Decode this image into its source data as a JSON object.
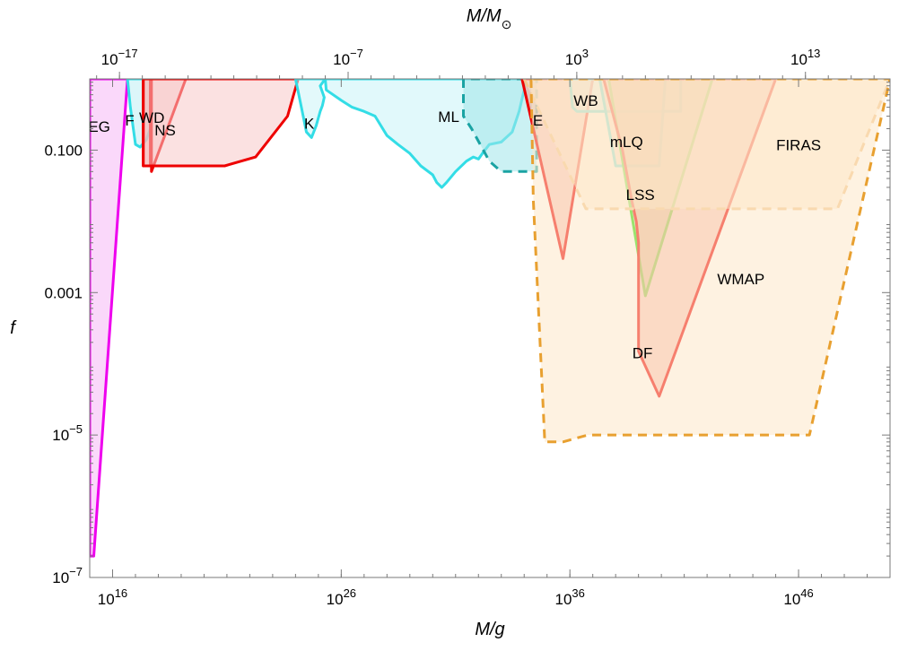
{
  "chart_data": {
    "type": "area",
    "title": "",
    "x_scale": "log",
    "y_scale": "log",
    "xlabel": "M/g",
    "ylabel": "f",
    "x2label_main": "M/M",
    "x2label_sub": "⊙",
    "xlim": [
      1000000000000000.0,
      1e+50
    ],
    "ylim": [
      1e-07,
      1
    ],
    "grid": false,
    "legend": "none",
    "xticks": [
      {
        "value": 1e+16,
        "base": "10",
        "exp": "16"
      },
      {
        "value": 1e+26,
        "base": "10",
        "exp": "26"
      },
      {
        "value": 1e+36,
        "base": "10",
        "exp": "36"
      },
      {
        "value": 1e+46,
        "base": "10",
        "exp": "46"
      }
    ],
    "x2ticks": [
      {
        "value": 2e+16,
        "base": "10",
        "exp": "−17"
      },
      {
        "value": 2e+26,
        "base": "10",
        "exp": "−7"
      },
      {
        "value": 2e+36,
        "base": "10",
        "exp": "3"
      },
      {
        "value": 2e+46,
        "base": "10",
        "exp": "13"
      }
    ],
    "yticks": [
      {
        "value": 1e-07,
        "text": "",
        "base": "10",
        "exp": "−7"
      },
      {
        "value": 1e-05,
        "text": "",
        "base": "10",
        "exp": "−5"
      },
      {
        "value": 0.001,
        "text": "0.001"
      },
      {
        "value": 0.1,
        "text": "0.100"
      }
    ],
    "regions": [
      {
        "label": "EG",
        "label_at": [
          2600000000000000.0,
          0.18
        ],
        "fill": "#f6b8f6",
        "stroke": "#ee00ee",
        "dash": false,
        "points": [
          [
            1000000000000000.0,
            2e-07
          ],
          [
            1500000000000000.0,
            2e-07
          ],
          [
            4.5e+16,
            1
          ],
          [
            1000000000000000.0,
            1
          ]
        ]
      },
      {
        "label": "F",
        "label_at": [
          5.6e+16,
          0.22
        ],
        "fill": "#bfeef4",
        "stroke": "#33dde6",
        "dash": false,
        "points": [
          [
            4.5e+16,
            1
          ],
          [
            6e+16,
            0.4
          ],
          [
            1e+17,
            0.12
          ],
          [
            1.6e+17,
            0.11
          ],
          [
            3e+17,
            0.14
          ],
          [
            4.5e+17,
            0.2
          ],
          [
            4.5e+17,
            1
          ]
        ]
      },
      {
        "label": "WD",
        "label_at": [
          5.2e+17,
          0.24
        ],
        "fill": "#f4a0a0",
        "stroke": "#ee0000",
        "dash": false,
        "points": [
          [
            2.2e+17,
            1
          ],
          [
            2.2e+17,
            0.06
          ],
          [
            4.5e+17,
            0.06
          ],
          [
            4.5e+17,
            1
          ]
        ]
      },
      {
        "label": "NS",
        "label_at": [
          2e+18,
          0.16
        ],
        "fill": "#f8c8c8",
        "stroke": "#ee0000",
        "dash": false,
        "points": [
          [
            5e+17,
            1
          ],
          [
            5e+17,
            0.05
          ],
          [
            1.6e+19,
            1
          ]
        ]
      },
      {
        "label": "",
        "label_at": [
          1e+18,
          1
        ],
        "fill": "#f8c8c8",
        "stroke": "#ee0000",
        "dash": false,
        "points": [
          [
            2.2e+17,
            0.06
          ],
          [
            6e+17,
            0.06
          ],
          [
            5e+18,
            0.06
          ],
          [
            8e+20,
            0.06
          ],
          [
            1.8e+22,
            0.08
          ],
          [
            4.5e+23,
            0.3
          ],
          [
            1.3e+24,
            1
          ],
          [
            2.2e+17,
            1
          ]
        ]
      },
      {
        "label": "K",
        "label_at": [
          4e+24,
          0.2
        ],
        "fill": "#ccf4f8",
        "stroke": "#33dde6",
        "dash": false,
        "points": [
          [
            1e+24,
            1
          ],
          [
            1.8e+24,
            0.4
          ],
          [
            3e+24,
            0.18
          ],
          [
            5e+24,
            0.15
          ],
          [
            8e+24,
            0.22
          ],
          [
            1.2e+25,
            0.35
          ],
          [
            1.5e+25,
            0.42
          ],
          [
            1.8e+25,
            0.55
          ],
          [
            1.2e+25,
            0.8
          ],
          [
            2e+25,
            1
          ]
        ]
      },
      {
        "label": "",
        "label_at": [
          1e+28,
          1
        ],
        "fill": "#c8f4f8",
        "stroke": "#33dde6",
        "dash": false,
        "points": [
          [
            2e+25,
            1
          ],
          [
            2.2e+25,
            0.7
          ],
          [
            1e+26,
            0.5
          ],
          [
            3e+26,
            0.4
          ],
          [
            1e+27,
            0.35
          ],
          [
            3e+27,
            0.3
          ],
          [
            1e+28,
            0.16
          ],
          [
            3e+28,
            0.12
          ],
          [
            1e+29,
            0.09
          ],
          [
            3e+29,
            0.06
          ],
          [
            1e+30,
            0.045
          ],
          [
            1.5e+30,
            0.035
          ],
          [
            2.5e+30,
            0.03
          ],
          [
            4e+30,
            0.035
          ],
          [
            1e+31,
            0.05
          ],
          [
            3e+31,
            0.07
          ],
          [
            6e+31,
            0.08
          ],
          [
            1e+32,
            0.075
          ],
          [
            1.5e+32,
            0.09
          ],
          [
            3e+32,
            0.12
          ],
          [
            1e+33,
            0.13
          ],
          [
            3e+33,
            0.18
          ],
          [
            6e+33,
            0.35
          ],
          [
            1e+34,
            0.7
          ],
          [
            1e+34,
            1
          ]
        ]
      },
      {
        "label": "ML",
        "label_at": [
          5e+30,
          0.25
        ],
        "fill": "#a0e6ea",
        "stroke": "#1aa3a3",
        "dash": true,
        "points": [
          [
            2.2e+31,
            1
          ],
          [
            2.2e+31,
            0.3
          ],
          [
            5e+31,
            0.2
          ],
          [
            3e+32,
            0.07
          ],
          [
            1e+33,
            0.05
          ],
          [
            1e+34,
            0.05
          ],
          [
            3.5e+34,
            0.05
          ],
          [
            3.5e+34,
            1
          ]
        ]
      },
      {
        "label": "E",
        "label_at": [
          4e+34,
          0.22
        ],
        "fill": "#f4a08c",
        "stroke": "#ee0000",
        "dash": false,
        "points": [
          [
            8e+33,
            1
          ],
          [
            5e+35,
            0.003
          ],
          [
            1e+37,
            1
          ]
        ]
      },
      {
        "label": "WB",
        "label_at": [
          5e+36,
          0.42
        ],
        "fill": "#c8f4f8",
        "stroke": "#33dde6",
        "dash": false,
        "points": [
          [
            1e+36,
            1
          ],
          [
            1.3e+36,
            0.4
          ],
          [
            2e+36,
            0.35
          ],
          [
            7e+40,
            0.35
          ],
          [
            7e+40,
            1
          ]
        ]
      },
      {
        "label": "mLQ",
        "label_at": [
          3e+38,
          0.11
        ],
        "fill": "#f8c8b8",
        "stroke": "#33dde6",
        "dash": false,
        "points": [
          [
            2e+37,
            1
          ],
          [
            1e+38,
            0.06
          ],
          [
            8e+39,
            0.06
          ],
          [
            1.5e+40,
            1
          ]
        ]
      },
      {
        "label": "LSS",
        "label_at": [
          1.2e+39,
          0.02
        ],
        "fill": "#c0c880",
        "stroke": "#22dd00",
        "dash": false,
        "points": [
          [
            5e+37,
            1
          ],
          [
            2e+39,
            0.0009
          ],
          [
            1.7e+42,
            1
          ]
        ]
      },
      {
        "label": "DF",
        "label_at": [
          1.5e+39,
          0.00012
        ],
        "fill": "#f4a08c",
        "stroke": "#ee0000",
        "dash": false,
        "points": [
          [
            3e+37,
            1
          ],
          [
            2e+38,
            0.1
          ],
          [
            5e+38,
            0.02
          ],
          [
            8e+38,
            0.01
          ],
          [
            1e+39,
            0.005
          ],
          [
            1e+39,
            0.00015
          ],
          [
            8e+39,
            3.5e-05
          ],
          [
            1e+45,
            1
          ]
        ]
      },
      {
        "label": "FIRAS",
        "label_at": [
          1e+46,
          0.1
        ],
        "fill": "#fde8c8",
        "stroke": "#f4c890",
        "dash": true,
        "points": [
          [
            1e+34,
            1
          ],
          [
            5e+36,
            0.015
          ],
          [
            1e+38,
            0.015
          ],
          [
            1e+41,
            0.015
          ],
          [
            1e+46,
            0.015
          ],
          [
            5e+47,
            0.015
          ],
          [
            1e+50,
            1
          ]
        ]
      },
      {
        "label": "WMAP",
        "label_at": [
          3e+43,
          0.0013
        ],
        "fill": "#fde8c8",
        "stroke": "#e8a030",
        "dash": true,
        "points": [
          [
            2e+34,
            1
          ],
          [
            2.5e+34,
            0.02
          ],
          [
            8e+34,
            8e-06
          ],
          [
            5e+35,
            8e-06
          ],
          [
            6e+36,
            1e-05
          ],
          [
            3e+46,
            1e-05
          ],
          [
            1e+50,
            1
          ]
        ]
      }
    ]
  }
}
